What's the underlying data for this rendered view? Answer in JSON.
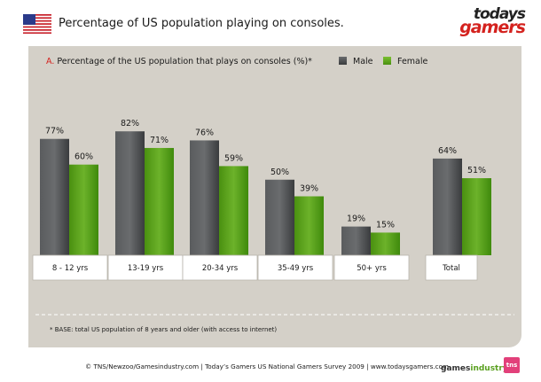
{
  "header": {
    "title": "Percentage of US population playing on consoles.",
    "brand_top": "todays",
    "brand_bottom": "gamers"
  },
  "chart_data": {
    "type": "bar",
    "subtitle_letter": "A.",
    "subtitle": "Percentage of the US population that plays on consoles (%)*",
    "categories": [
      "8 - 12 yrs",
      "13-19 yrs",
      "20-34 yrs",
      "35-49 yrs",
      "50+ yrs",
      "Total"
    ],
    "series": [
      {
        "name": "Male",
        "values": [
          77,
          82,
          76,
          50,
          19,
          64
        ],
        "labels": [
          "77%",
          "82%",
          "76%",
          "50%",
          "19%",
          "64%"
        ]
      },
      {
        "name": "Female",
        "values": [
          60,
          71,
          59,
          39,
          15,
          51
        ],
        "labels": [
          "60%",
          "71%",
          "59%",
          "39%",
          "15%",
          "51%"
        ]
      }
    ],
    "ylim": [
      0,
      100
    ],
    "grid": false,
    "legend_position": "top-right",
    "colors": {
      "male": "#4a4c4e",
      "female": "#5aa020"
    }
  },
  "footnote": "* BASE: total US population of 8 years and older (with access to internet)",
  "footer": {
    "credit": "© TNS/Newzoo/Gamesindustry.com | Today’s Gamers US National Gamers Survey 2009 | www.todaysgamers.com",
    "logo_gi_a": "games",
    "logo_gi_b": "industry",
    "logo_tns": "tns"
  },
  "colors": {
    "panel": "#d4d0c8",
    "accent_red": "#d4221e"
  }
}
